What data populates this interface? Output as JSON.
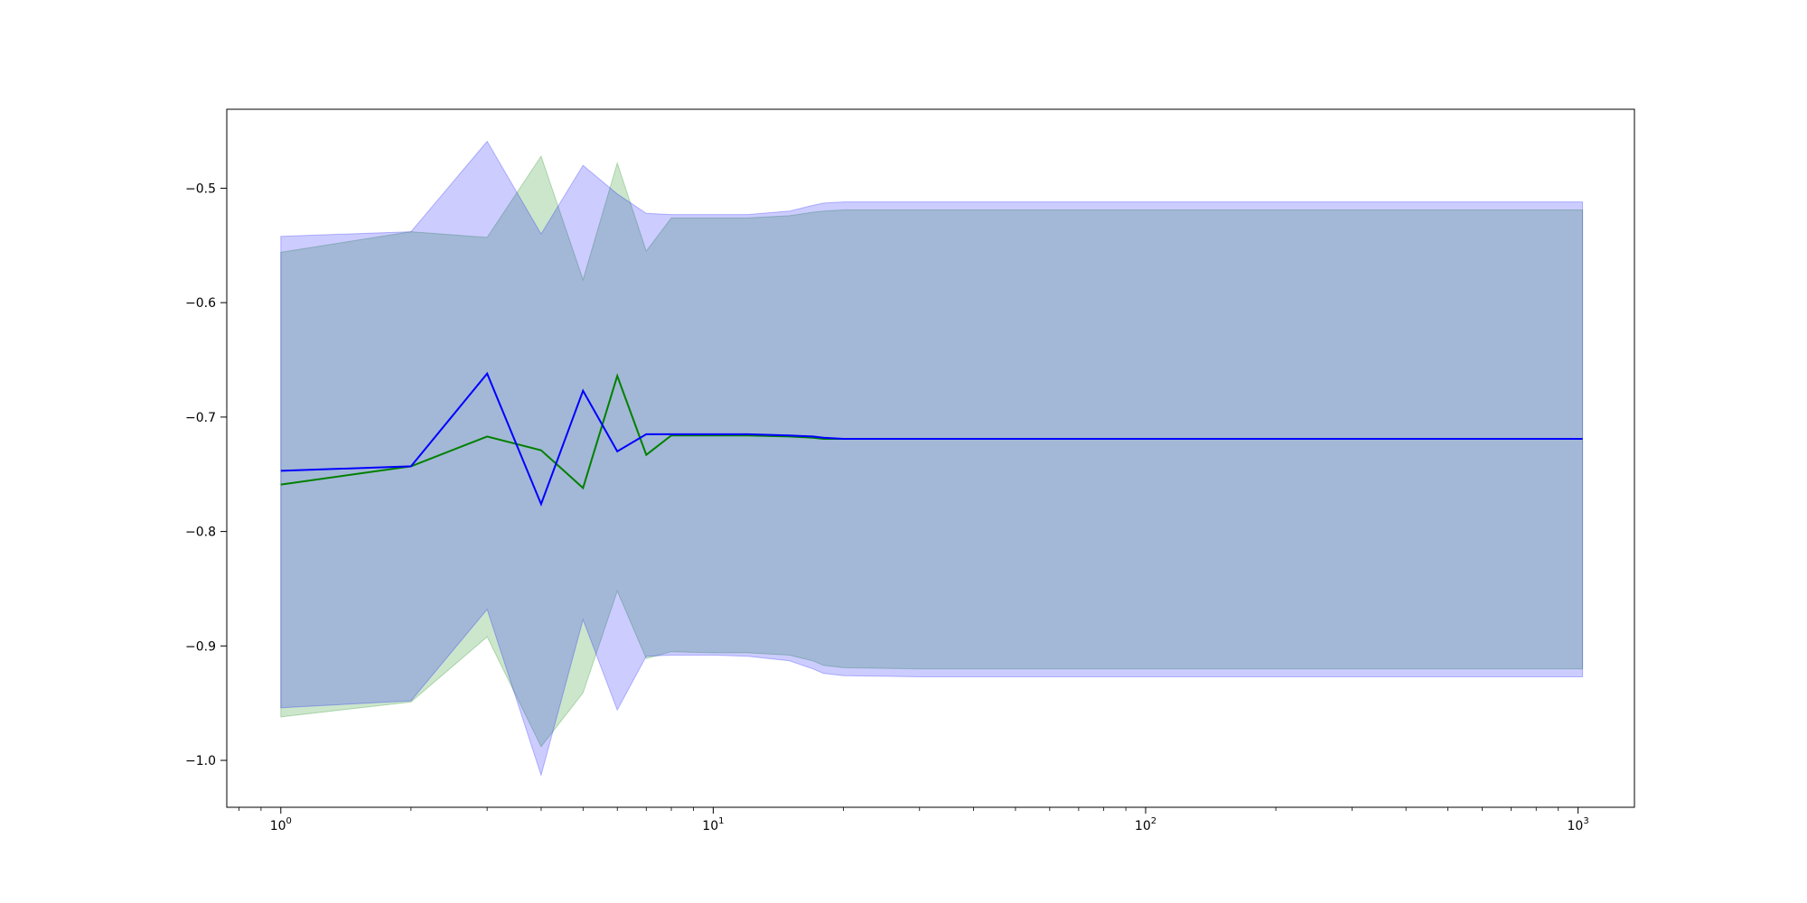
{
  "chart_data": {
    "type": "line",
    "title": "",
    "xlabel": "",
    "ylabel": "",
    "xscale": "log",
    "xlim": [
      0.75,
      1350
    ],
    "ylim": [
      -1.041,
      -0.431
    ],
    "grid": false,
    "legend": "none",
    "x_ticks": [
      {
        "value": 1,
        "base": "10",
        "exp": "0"
      },
      {
        "value": 10,
        "base": "10",
        "exp": "1"
      },
      {
        "value": 100,
        "base": "10",
        "exp": "2"
      },
      {
        "value": 1000,
        "base": "10",
        "exp": "3"
      }
    ],
    "y_ticks": [
      {
        "value": -0.5,
        "label": "−0.5"
      },
      {
        "value": -0.6,
        "label": "−0.6"
      },
      {
        "value": -0.7,
        "label": "−0.7"
      },
      {
        "value": -0.8,
        "label": "−0.8"
      },
      {
        "value": -0.9,
        "label": "−0.9"
      },
      {
        "value": -1.0,
        "label": "−1.0"
      }
    ],
    "series": [
      {
        "color": "#008000",
        "band_color": "#008000",
        "points": [
          [
            1,
            -0.759,
            -0.556,
            -0.962
          ],
          [
            2,
            -0.743,
            -0.538,
            -0.949
          ],
          [
            3,
            -0.717,
            -0.543,
            -0.892
          ],
          [
            4,
            -0.729,
            -0.472,
            -0.988
          ],
          [
            5,
            -0.762,
            -0.58,
            -0.941
          ],
          [
            6,
            -0.664,
            -0.478,
            -0.852
          ],
          [
            7,
            -0.733,
            -0.555,
            -0.911
          ],
          [
            8,
            -0.716,
            -0.526,
            -0.905
          ],
          [
            10,
            -0.716,
            -0.526,
            -0.906
          ],
          [
            12,
            -0.716,
            -0.526,
            -0.906
          ],
          [
            15,
            -0.717,
            -0.524,
            -0.908
          ],
          [
            17,
            -0.718,
            -0.521,
            -0.913
          ],
          [
            18,
            -0.719,
            -0.52,
            -0.917
          ],
          [
            20,
            -0.719,
            -0.519,
            -0.919
          ],
          [
            30,
            -0.719,
            -0.519,
            -0.92
          ],
          [
            100,
            -0.719,
            -0.519,
            -0.92
          ],
          [
            1024,
            -0.719,
            -0.519,
            -0.92
          ]
        ]
      },
      {
        "color": "#0000ff",
        "band_color": "#0000ff",
        "points": [
          [
            1,
            -0.747,
            -0.542,
            -0.954
          ],
          [
            2,
            -0.743,
            -0.538,
            -0.948
          ],
          [
            3,
            -0.662,
            -0.459,
            -0.868
          ],
          [
            4,
            -0.776,
            -0.54,
            -1.013
          ],
          [
            5,
            -0.677,
            -0.48,
            -0.877
          ],
          [
            6,
            -0.73,
            -0.505,
            -0.956
          ],
          [
            7,
            -0.715,
            -0.522,
            -0.909
          ],
          [
            8,
            -0.715,
            -0.523,
            -0.908
          ],
          [
            10,
            -0.715,
            -0.523,
            -0.908
          ],
          [
            12,
            -0.715,
            -0.523,
            -0.909
          ],
          [
            15,
            -0.716,
            -0.52,
            -0.913
          ],
          [
            17,
            -0.717,
            -0.515,
            -0.92
          ],
          [
            18,
            -0.718,
            -0.513,
            -0.924
          ],
          [
            20,
            -0.719,
            -0.512,
            -0.926
          ],
          [
            30,
            -0.719,
            -0.512,
            -0.927
          ],
          [
            100,
            -0.719,
            -0.512,
            -0.927
          ],
          [
            1024,
            -0.719,
            -0.512,
            -0.927
          ]
        ]
      }
    ]
  }
}
